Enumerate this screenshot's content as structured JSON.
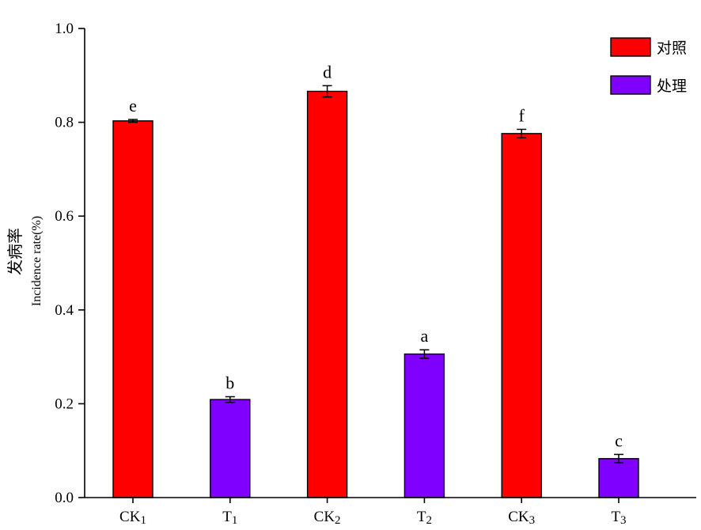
{
  "chart_data": {
    "type": "bar",
    "categories": [
      "CK1",
      "T1",
      "CK2",
      "T2",
      "CK3",
      "T3"
    ],
    "category_labels": [
      {
        "base": "CK",
        "sub": "1"
      },
      {
        "base": "T",
        "sub": "1"
      },
      {
        "base": "CK",
        "sub": "2"
      },
      {
        "base": "T",
        "sub": "2"
      },
      {
        "base": "CK",
        "sub": "3"
      },
      {
        "base": "T",
        "sub": "3"
      }
    ],
    "values": [
      0.803,
      0.209,
      0.866,
      0.306,
      0.776,
      0.083
    ],
    "errors": [
      0.003,
      0.006,
      0.012,
      0.009,
      0.009,
      0.009
    ],
    "significance": [
      "e",
      "b",
      "d",
      "a",
      "f",
      "c"
    ],
    "groups": [
      "对照",
      "处理",
      "对照",
      "处理",
      "对照",
      "处理"
    ],
    "series": [
      {
        "name": "对照",
        "color": "#ff0000"
      },
      {
        "name": "处理",
        "color": "#7f00ff"
      }
    ],
    "ylabel_cn": "发病率",
    "ylabel_en": "Incidence rate(%)",
    "xlabel": "",
    "title": "",
    "ylim": [
      0,
      1.0
    ],
    "yticks": [
      0.0,
      0.2,
      0.4,
      0.6,
      0.8,
      1.0
    ],
    "ytick_labels": [
      "0.0",
      "0.2",
      "0.4",
      "0.6",
      "0.8",
      "1.0"
    ],
    "legend_position": "top-right",
    "grid": false
  }
}
